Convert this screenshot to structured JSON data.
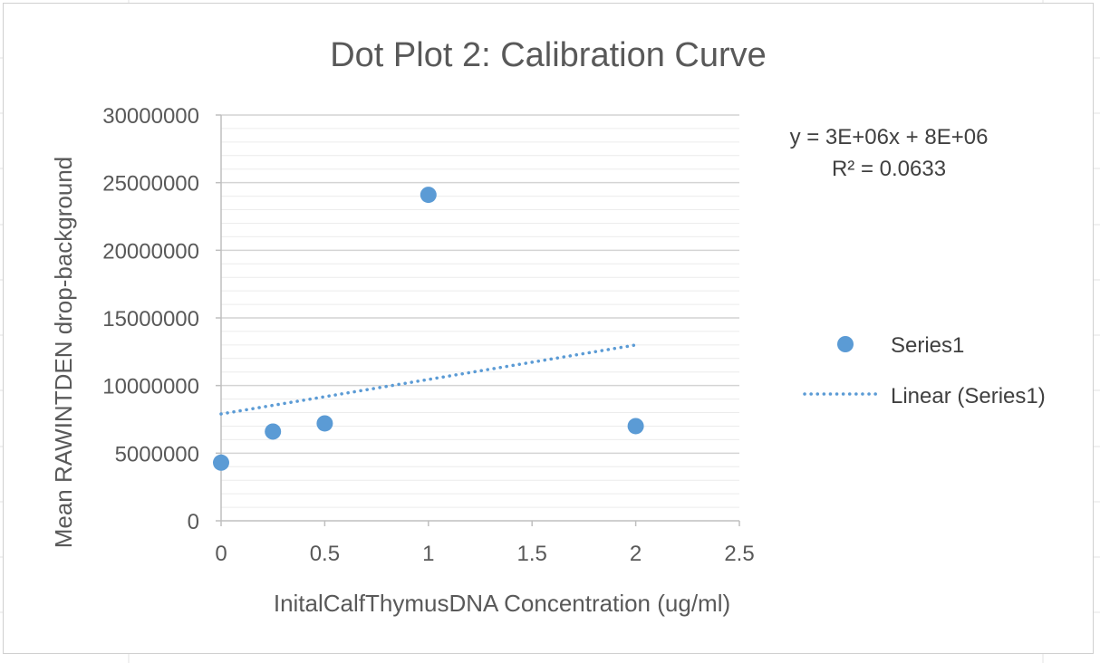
{
  "chart_data": {
    "type": "scatter",
    "title": "Dot Plot 2: Calibration Curve",
    "xlabel": "InitalCalfThymusDNA Concentration (ug/ml)",
    "ylabel": "Mean RAWINTDEN drop-background",
    "xlim": [
      0,
      2.5
    ],
    "ylim": [
      0,
      30000000
    ],
    "x_ticks": [
      "0",
      "0.5",
      "1",
      "1.5",
      "2",
      "2.5"
    ],
    "y_ticks": [
      "0",
      "5000000",
      "10000000",
      "15000000",
      "20000000",
      "25000000",
      "30000000"
    ],
    "grid": true,
    "series": [
      {
        "name": "Series1",
        "color": "#5b9bd5",
        "x": [
          0,
          0.25,
          0.5,
          1,
          2
        ],
        "y": [
          4300000,
          6600000,
          7200000,
          24100000,
          7000000
        ]
      }
    ],
    "trendline": {
      "name": "Linear (Series1)",
      "type": "linear",
      "style": "dotted",
      "color": "#5b9bd5",
      "x": [
        0,
        2
      ],
      "y": [
        7900000,
        13000000
      ],
      "equation": "y = 3E+06x + 8E+06",
      "r_squared": "R² = 0.0633"
    },
    "legend": {
      "position": "right"
    }
  }
}
